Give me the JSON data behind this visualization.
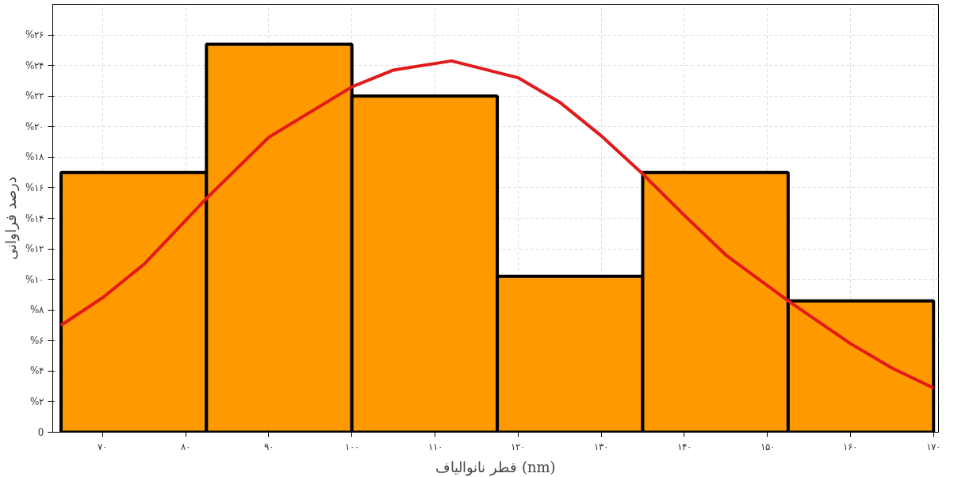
{
  "chart_data": {
    "type": "histogram",
    "xlabel": "قطر نانوالیاف (nm)",
    "ylabel": "درصد فراوانی",
    "series": [
      {
        "bins": [
          65,
          82.5,
          100,
          117.5,
          135,
          152.5,
          170
        ],
        "values": [
          17,
          25.4,
          22,
          10.2,
          17,
          8.6
        ],
        "color": "#ff9900"
      },
      {
        "type": "line",
        "color": "#e31a1c",
        "x": [
          65,
          70,
          75,
          82.5,
          90,
          100,
          105,
          112,
          120,
          125,
          130,
          135,
          140,
          145,
          152.5,
          160,
          165,
          170
        ],
        "values": [
          7,
          8.8,
          11,
          15.3,
          19.3,
          22.6,
          23.7,
          24.3,
          23.2,
          21.6,
          19.4,
          16.9,
          14.2,
          11.6,
          8.6,
          5.8,
          4.2,
          2.9
        ]
      }
    ],
    "xlim": [
      64,
      170.6
    ],
    "ylim": [
      0,
      28
    ],
    "xticks": [
      {
        "value": 70,
        "label": "۷۰"
      },
      {
        "value": 80,
        "label": "۸۰"
      },
      {
        "value": 90,
        "label": "۹۰"
      },
      {
        "value": 100,
        "label": "۱۰۰"
      },
      {
        "value": 110,
        "label": "۱۱۰"
      },
      {
        "value": 120,
        "label": "۱۲۰"
      },
      {
        "value": 130,
        "label": "۱۳۰"
      },
      {
        "value": 140,
        "label": "۱۴۰"
      },
      {
        "value": 150,
        "label": "۱۵۰"
      },
      {
        "value": 160,
        "label": "۱۶۰"
      },
      {
        "value": 170,
        "label": "۱۷۰"
      }
    ],
    "yticks": [
      0,
      {
        "value": 2,
        "label": "%۲"
      },
      {
        "value": 4,
        "label": "%۴"
      },
      {
        "value": 6,
        "label": "%۶"
      },
      {
        "value": 8,
        "label": "%۸"
      },
      {
        "value": 10,
        "label": "%۱۰"
      },
      {
        "value": 12,
        "label": "%۱۲"
      },
      {
        "value": 14,
        "label": "%۱۴"
      },
      {
        "value": 16,
        "label": "%۱۶"
      },
      {
        "value": 18,
        "label": "%۱۸"
      },
      {
        "value": 20,
        "label": "%۲۰"
      },
      {
        "value": 22,
        "label": "%۲۲"
      },
      {
        "value": 24,
        "label": "%۲۴"
      },
      {
        "value": 26,
        "label": "%۲۶"
      }
    ],
    "grid": true
  }
}
